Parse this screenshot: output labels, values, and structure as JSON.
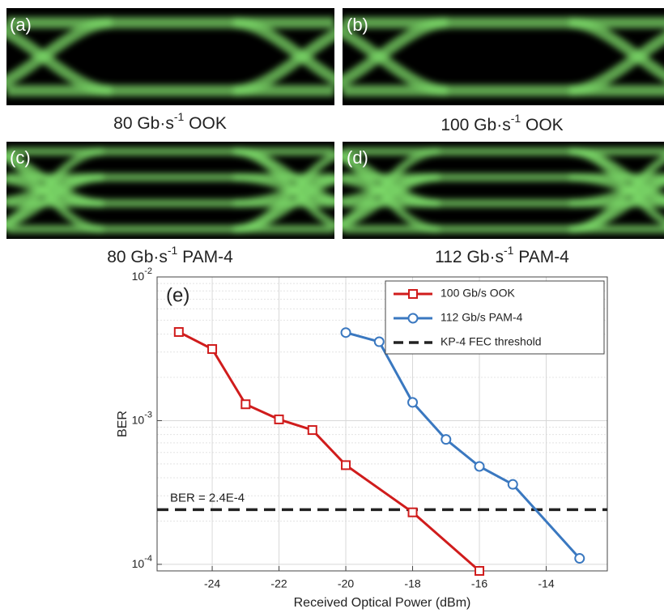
{
  "panels": [
    {
      "label": "(a)",
      "caption": {
        "text": "80 Gb·s",
        "sup": "-1",
        "suffix": " OOK"
      }
    },
    {
      "label": "(b)",
      "caption": {
        "text": "100 Gb·s",
        "sup": "-1",
        "suffix": " OOK"
      }
    },
    {
      "label": "(c)",
      "caption": {
        "text": "80 Gb·s",
        "sup": "-1",
        "suffix": " PAM-4"
      }
    },
    {
      "label": "(d)",
      "caption": {
        "text": "112 Gb·s",
        "sup": "-1",
        "suffix": " PAM-4"
      }
    }
  ],
  "chart_data": {
    "type": "line",
    "panel_label": "(e)",
    "x_label": "Received Optical Power (dBm)",
    "y_label": "BER",
    "log_y": true,
    "grid": true,
    "minor_grid": true,
    "legend": "upper right",
    "xlim": [
      -25.65,
      -12.17
    ],
    "xticks": [
      -24,
      -22,
      -20,
      -18,
      -16,
      -14
    ],
    "ylim": [
      9e-05,
      0.01
    ],
    "yticks": [
      {
        "value": 0.0001,
        "label": "10",
        "exponent": "-4"
      },
      {
        "value": 0.001,
        "label": "10",
        "exponent": "-3"
      },
      {
        "value": 0.01,
        "label": "10",
        "exponent": "-2"
      }
    ],
    "series": [
      {
        "name": "100 Gb/s OOK",
        "color": "#d01c1c",
        "marker": "square",
        "x": [
          -25,
          -24,
          -23,
          -22,
          -21,
          -20,
          -18,
          -16
        ],
        "values": [
          0.00414,
          0.00315,
          0.0013,
          0.00102,
          0.00086,
          0.00049,
          0.00023,
          9e-05
        ]
      },
      {
        "name": "112 Gb/s PAM-4",
        "color": "#3a78c0",
        "marker": "circle",
        "x": [
          -20,
          -19,
          -18,
          -17,
          -16,
          -15,
          -13
        ],
        "values": [
          0.0041,
          0.00354,
          0.00134,
          0.00074,
          0.00048,
          0.00036,
          0.00011
        ]
      }
    ],
    "threshold": {
      "name": "KP-4 FEC threshold",
      "value": 0.00024,
      "color": "#222",
      "label": "BER = 2.4E-4"
    }
  }
}
